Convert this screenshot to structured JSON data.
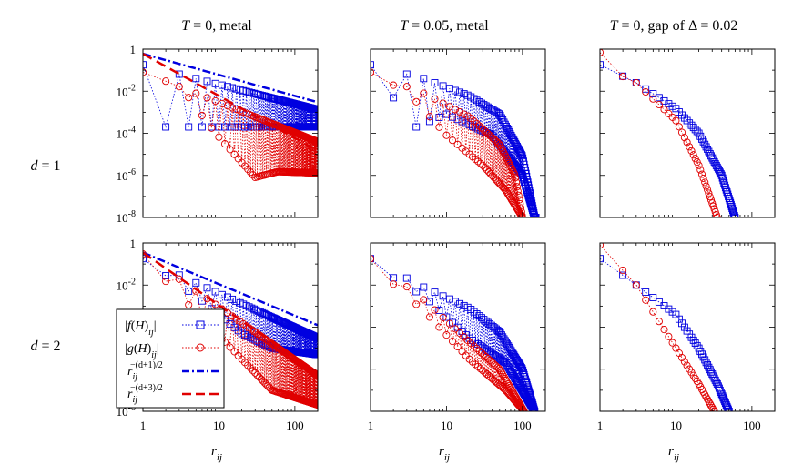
{
  "figure": {
    "column_titles": [
      "T = 0, metal",
      "T = 0.05, metal",
      "T = 0, gap of Δ = 0.02"
    ],
    "row_labels": [
      "d = 1",
      "d = 2"
    ],
    "xlabel": "r_ij",
    "x_ticks": [
      "1",
      "10",
      "100"
    ],
    "y_ticks": [
      "1",
      "10^-2",
      "10^-4",
      "10^-6",
      "10^-8"
    ],
    "legend": [
      "|f(H)_ij|",
      "|g(H)_ij|",
      "r_ij^-(d+1)/2",
      "r_ij^-(d+3)/2"
    ]
  },
  "colors": {
    "f": "#0000e0",
    "g": "#e00000",
    "frame": "#000000"
  },
  "chart_data": [
    {
      "type": "scatter",
      "panel": "d=1, T=0, metal",
      "xscale": "log",
      "yscale": "log",
      "xlim": [
        1,
        200
      ],
      "ylim": [
        1e-08,
        1
      ],
      "series": [
        {
          "name": "|f(H)_ij|",
          "style": "square-dotted",
          "mode": "oscillate",
          "x_max": 200,
          "upper": [
            [
              1,
              0.18
            ],
            [
              200,
              0.0013
            ]
          ],
          "floor": 0.0002,
          "lower_nodes": [
            [
              4,
              0.0002
            ],
            [
              200,
              0.0002
            ]
          ]
        },
        {
          "name": "|g(H)_ij|",
          "style": "circle-dotted",
          "mode": "oscillate",
          "x_max": 200,
          "upper": [
            [
              1,
              0.08
            ],
            [
              200,
              4e-05
            ]
          ],
          "lower_nodes": [
            [
              1,
              0.06
            ],
            [
              3,
              0.02
            ],
            [
              9,
              0.0001
            ],
            [
              30,
              8e-07
            ],
            [
              60,
              1.5e-06
            ],
            [
              200,
              1.3e-06
            ]
          ]
        },
        {
          "name": "r_ij^-(d+1)/2",
          "style": "dashdot",
          "mode": "powerlaw",
          "prefactor": 0.6,
          "exponent": -1.0,
          "x_range": [
            1,
            200
          ]
        },
        {
          "name": "r_ij^-(d+3)/2",
          "style": "dashed",
          "mode": "powerlaw",
          "prefactor": 0.6,
          "exponent": -2.0,
          "x_range": [
            1,
            200
          ]
        }
      ]
    },
    {
      "type": "scatter",
      "panel": "d=1, T=0.05, metal",
      "xscale": "log",
      "yscale": "log",
      "xlim": [
        1,
        200
      ],
      "ylim": [
        1e-08,
        1
      ],
      "series": [
        {
          "name": "|f(H)_ij|",
          "style": "square-dotted",
          "mode": "oscillate",
          "x_max": 150,
          "upper": [
            [
              1,
              0.18
            ],
            [
              5,
              0.04
            ],
            [
              20,
              0.006
            ],
            [
              50,
              0.0008
            ],
            [
              100,
              8e-06
            ],
            [
              145,
              1e-08
            ]
          ],
          "lower_nodes": [
            [
              1,
              0.12
            ],
            [
              4,
              0.0002
            ],
            [
              10,
              0.0008
            ],
            [
              40,
              8e-05
            ],
            [
              100,
              1e-06
            ],
            [
              145,
              1e-08
            ]
          ]
        },
        {
          "name": "|g(H)_ij|",
          "style": "circle-dotted",
          "mode": "oscillate",
          "x_max": 100,
          "upper": [
            [
              1,
              0.08
            ],
            [
              5,
              0.008
            ],
            [
              20,
              0.0006
            ],
            [
              50,
              3e-05
            ],
            [
              80,
              1e-06
            ],
            [
              100,
              1e-08
            ]
          ],
          "lower_nodes": [
            [
              1,
              0.06
            ],
            [
              3,
              0.01
            ],
            [
              10,
              8e-05
            ],
            [
              30,
              3e-06
            ],
            [
              60,
              2e-07
            ],
            [
              100,
              1e-08
            ]
          ]
        }
      ]
    },
    {
      "type": "scatter",
      "panel": "d=1, T=0, gap of Δ=0.02",
      "xscale": "log",
      "yscale": "log",
      "xlim": [
        1,
        200
      ],
      "ylim": [
        1e-08,
        1
      ],
      "series": [
        {
          "name": "|f(H)_ij|",
          "style": "square-dotted",
          "mode": "smooth",
          "x_max": 60,
          "nodes": [
            [
              1,
              0.18
            ],
            [
              3,
              0.025
            ],
            [
              10,
              0.0015
            ],
            [
              20,
              0.0001
            ],
            [
              40,
              1e-06
            ],
            [
              60,
              1e-08
            ]
          ]
        },
        {
          "name": "|g(H)_ij|",
          "style": "circle-dotted",
          "mode": "smooth",
          "x_max": 35,
          "nodes": [
            [
              1,
              0.7
            ],
            [
              2,
              0.05
            ],
            [
              3,
              0.025
            ],
            [
              10,
              0.0004
            ],
            [
              20,
              3e-06
            ],
            [
              35,
              1e-08
            ]
          ]
        }
      ]
    },
    {
      "type": "scatter",
      "panel": "d=2, T=0, metal",
      "xscale": "log",
      "yscale": "log",
      "xlim": [
        1,
        200
      ],
      "ylim": [
        1e-08,
        1
      ],
      "series": [
        {
          "name": "|f(H)_ij|",
          "style": "square-dotted",
          "mode": "oscillate",
          "x_max": 200,
          "upper": [
            [
              1,
              0.18
            ],
            [
              200,
              3e-05
            ]
          ],
          "lower_nodes": [
            [
              1,
              0.15
            ],
            [
              5,
              0.003
            ],
            [
              20,
              5e-05
            ],
            [
              50,
              1e-05
            ],
            [
              200,
              5e-06
            ]
          ]
        },
        {
          "name": "|g(H)_ij|",
          "style": "circle-dotted",
          "mode": "oscillate",
          "x_max": 200,
          "upper": [
            [
              1,
              0.3
            ],
            [
              200,
              5e-07
            ]
          ],
          "lower_nodes": [
            [
              1,
              0.2
            ],
            [
              5,
              0.0005
            ],
            [
              20,
              3e-06
            ],
            [
              50,
              1e-07
            ],
            [
              200,
              2e-08
            ]
          ]
        },
        {
          "name": "r_ij^-(d+1)/2",
          "style": "dashdot",
          "mode": "powerlaw",
          "prefactor": 0.35,
          "exponent": -1.5,
          "x_range": [
            1,
            200
          ]
        },
        {
          "name": "r_ij^-(d+3)/2",
          "style": "dashed",
          "mode": "powerlaw",
          "prefactor": 0.35,
          "exponent": -2.5,
          "x_range": [
            1,
            200
          ]
        }
      ]
    },
    {
      "type": "scatter",
      "panel": "d=2, T=0.05, metal",
      "xscale": "log",
      "yscale": "log",
      "xlim": [
        1,
        200
      ],
      "ylim": [
        1e-08,
        1
      ],
      "series": [
        {
          "name": "|f(H)_ij|",
          "style": "square-dotted",
          "mode": "oscillate",
          "x_max": 145,
          "upper": [
            [
              1,
              0.18
            ],
            [
              5,
              0.008
            ],
            [
              20,
              0.0008
            ],
            [
              50,
              6e-05
            ],
            [
              100,
              1e-06
            ],
            [
              145,
              1e-08
            ]
          ],
          "lower_nodes": [
            [
              1,
              0.1
            ],
            [
              5,
              0.003
            ],
            [
              20,
              3e-05
            ],
            [
              60,
              2e-06
            ],
            [
              145,
              1e-08
            ]
          ]
        },
        {
          "name": "|g(H)_ij|",
          "style": "circle-dotted",
          "mode": "oscillate",
          "x_max": 105,
          "upper": [
            [
              1,
              0.18
            ],
            [
              5,
              0.002
            ],
            [
              20,
              2e-05
            ],
            [
              50,
              1e-06
            ],
            [
              105,
              1e-08
            ]
          ],
          "lower_nodes": [
            [
              1,
              0.1
            ],
            [
              5,
              0.0006
            ],
            [
              20,
              3e-06
            ],
            [
              60,
              1e-07
            ],
            [
              105,
              1e-08
            ]
          ]
        }
      ]
    },
    {
      "type": "scatter",
      "panel": "d=2, T=0, gap of Δ=0.02",
      "xscale": "log",
      "yscale": "log",
      "xlim": [
        1,
        200
      ],
      "ylim": [
        1e-08,
        1
      ],
      "series": [
        {
          "name": "|f(H)_ij|",
          "style": "square-dotted",
          "mode": "smooth",
          "x_max": 50,
          "nodes": [
            [
              1,
              0.18
            ],
            [
              3,
              0.01
            ],
            [
              10,
              0.0004
            ],
            [
              20,
              1e-05
            ],
            [
              35,
              2e-07
            ],
            [
              50,
              1e-08
            ]
          ]
        },
        {
          "name": "|g(H)_ij|",
          "style": "circle-dotted",
          "mode": "smooth",
          "x_max": 32,
          "nodes": [
            [
              1,
              0.8
            ],
            [
              2,
              0.05
            ],
            [
              3,
              0.01
            ],
            [
              10,
              1e-05
            ],
            [
              20,
              2e-07
            ],
            [
              32,
              1e-08
            ]
          ]
        }
      ]
    }
  ]
}
